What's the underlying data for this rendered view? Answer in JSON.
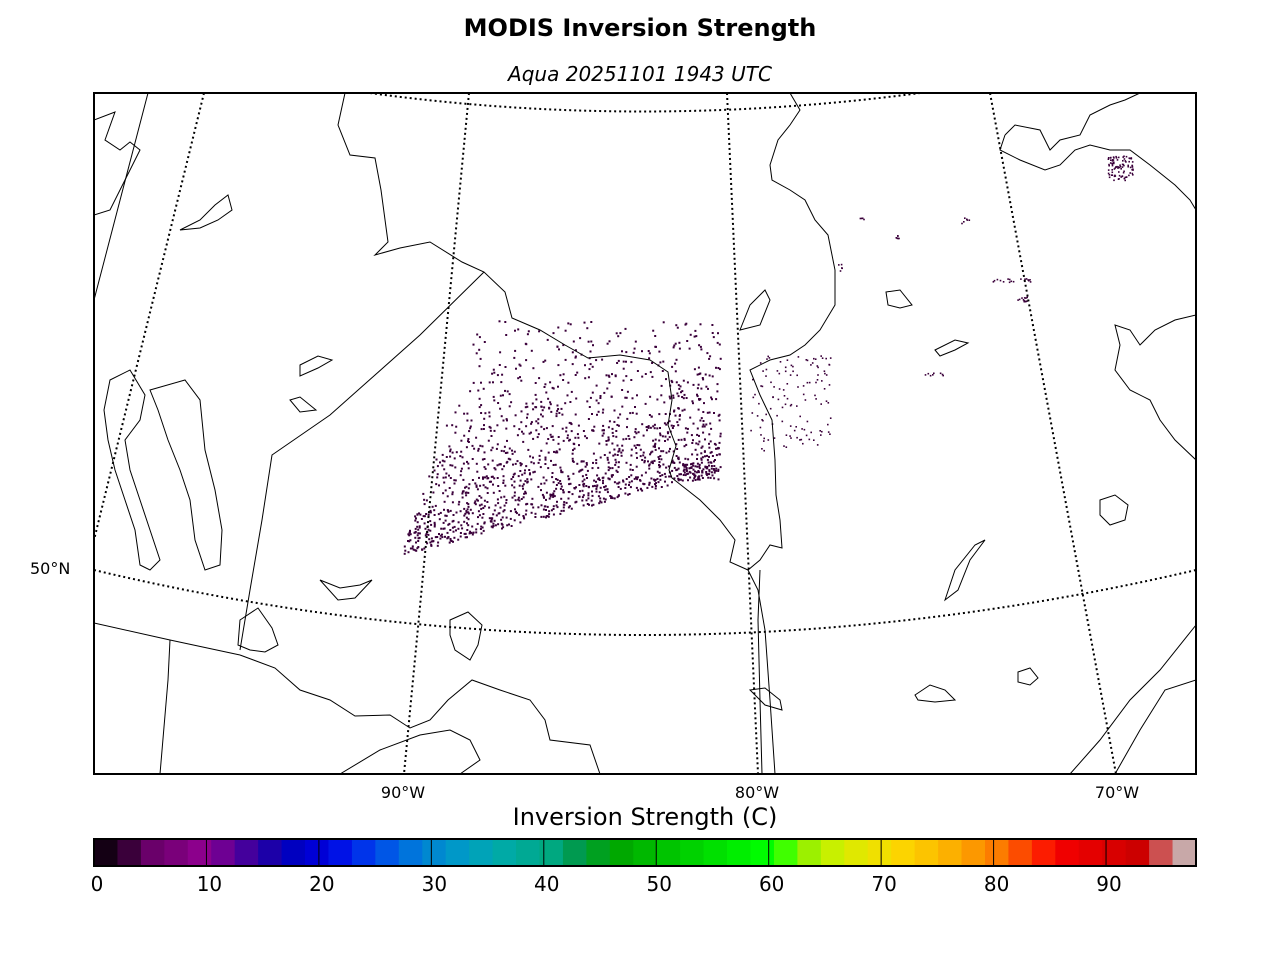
{
  "header": {
    "title": "MODIS Inversion Strength",
    "subtitle": "Aqua 20251101 1943 UTC"
  },
  "map": {
    "longitude_labels": [
      "90°W",
      "80°W",
      "70°W"
    ],
    "latitude_labels": [
      "50°N"
    ],
    "data_color": "#3a003a",
    "coastline_color": "#000000",
    "gridline_style": "dotted"
  },
  "colorbar": {
    "title": "Inversion Strength (C)",
    "range": [
      0,
      98
    ],
    "ticks": [
      "0",
      "10",
      "20",
      "30",
      "40",
      "50",
      "60",
      "70",
      "80",
      "90"
    ],
    "colors": [
      "#140014",
      "#3a003a",
      "#6a006a",
      "#7a007a",
      "#8c008c",
      "#6e0093",
      "#44009c",
      "#1c00a8",
      "#0000c0",
      "#0000d6",
      "#0012e6",
      "#0034ea",
      "#0056e6",
      "#0074dc",
      "#0088d0",
      "#0098c8",
      "#00a3b8",
      "#00aaa6",
      "#00a994",
      "#00a880",
      "#009a50",
      "#00a020",
      "#00a800",
      "#00b800",
      "#00c400",
      "#00d200",
      "#00e000",
      "#00ee00",
      "#00fc00",
      "#40ff00",
      "#9cf000",
      "#c8f000",
      "#e0e800",
      "#f0e000",
      "#fcd400",
      "#fcc400",
      "#fcb000",
      "#fc9800",
      "#fc7c00",
      "#fc4c00",
      "#fc1c00",
      "#f00000",
      "#e40000",
      "#d80000",
      "#cc0000",
      "#cc5050",
      "#c8a8a8"
    ]
  }
}
